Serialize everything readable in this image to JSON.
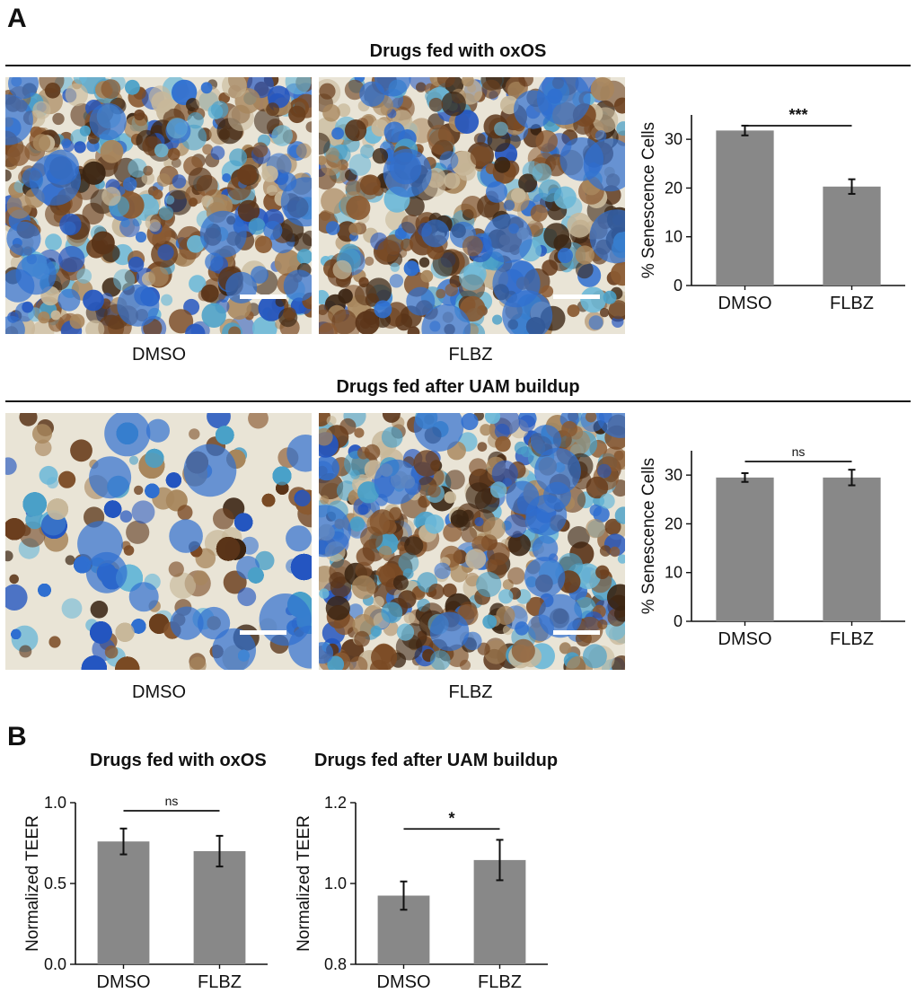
{
  "panels": {
    "a_label": "A",
    "b_label": "B"
  },
  "row1": {
    "title": "Drugs fed with oxOS",
    "image_labels": [
      "DMSO",
      "FLBZ"
    ]
  },
  "row2": {
    "title": "Drugs fed after UAM buildup",
    "image_labels": [
      "DMSO",
      "FLBZ"
    ]
  },
  "panel_b": {
    "title_left": "Drugs fed with oxOS",
    "title_right": "Drugs fed after UAM buildup"
  },
  "colors": {
    "bar": "#888888",
    "stain_blue": "#2f6fd0",
    "stain_cyan": "#4aa0c8",
    "stain_brown": "#5a3418",
    "background_cell": "#e9e4d6"
  },
  "chart_data": [
    {
      "id": "chartA1",
      "type": "bar",
      "categories": [
        "DMSO",
        "FLBZ"
      ],
      "values": [
        31.8,
        20.3
      ],
      "errors": [
        1.0,
        1.5
      ],
      "ylabel": "% Senescence Cells",
      "ylim": [
        0,
        35
      ],
      "yticks": [
        0,
        10,
        20,
        30
      ],
      "yticklabels": [
        "0",
        "10",
        "20",
        "30"
      ],
      "significance": "***",
      "grid": false
    },
    {
      "id": "chartA2",
      "type": "bar",
      "categories": [
        "DMSO",
        "FLBZ"
      ],
      "values": [
        29.5,
        29.5
      ],
      "errors": [
        0.9,
        1.6
      ],
      "ylabel": "% Senescence Cells",
      "ylim": [
        0,
        35
      ],
      "yticks": [
        0,
        10,
        20,
        30
      ],
      "yticklabels": [
        "0",
        "10",
        "20",
        "30"
      ],
      "significance": "ns",
      "grid": false
    },
    {
      "id": "chartB1",
      "type": "bar",
      "categories": [
        "DMSO",
        "FLBZ"
      ],
      "values": [
        0.76,
        0.7
      ],
      "errors": [
        0.08,
        0.095
      ],
      "ylabel": "Normalized TEER",
      "ylim": [
        0.0,
        1.0
      ],
      "yticks": [
        0.0,
        0.5,
        1.0
      ],
      "yticklabels": [
        "0.0",
        "0.5",
        "1.0"
      ],
      "significance": "ns",
      "grid": false
    },
    {
      "id": "chartB2",
      "type": "bar",
      "categories": [
        "DMSO",
        "FLBZ"
      ],
      "values": [
        0.97,
        1.058
      ],
      "errors": [
        0.035,
        0.05
      ],
      "ylabel": "Normalized TEER",
      "ylim": [
        0.8,
        1.2
      ],
      "yticks": [
        0.8,
        1.0,
        1.2
      ],
      "yticklabels": [
        "0.8",
        "1.0",
        "1.2"
      ],
      "significance": "*",
      "grid": false
    }
  ]
}
